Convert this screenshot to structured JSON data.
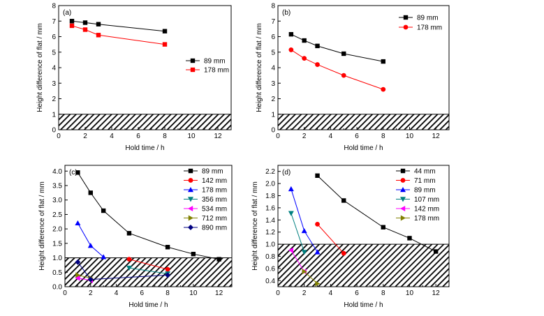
{
  "chart_data": [
    {
      "type": "line",
      "panel_label": "(a)",
      "xlabel": "Hold time / h",
      "ylabel": "Height difference of flat / mm",
      "xlim": [
        0,
        13
      ],
      "ylim": [
        0,
        8
      ],
      "xticks": [
        0,
        2,
        4,
        6,
        8,
        10,
        12
      ],
      "yticks": [
        0,
        1,
        2,
        3,
        4,
        5,
        6,
        7,
        8
      ],
      "hatch_band": [
        0,
        1
      ],
      "legend_position": "right",
      "series": [
        {
          "name": "89 mm",
          "color": "#000000",
          "marker": "square",
          "x": [
            1,
            2,
            3,
            8
          ],
          "y": [
            7.0,
            6.9,
            6.8,
            6.35
          ]
        },
        {
          "name": "178 mm",
          "color": "#ff0000",
          "marker": "square",
          "x": [
            1,
            2,
            3,
            8
          ],
          "y": [
            6.7,
            6.45,
            6.1,
            5.5
          ]
        }
      ]
    },
    {
      "type": "line",
      "panel_label": "(b)",
      "xlabel": "Hold time / h",
      "ylabel": "Height difference of flat / mm",
      "xlim": [
        0,
        13
      ],
      "ylim": [
        0,
        8
      ],
      "xticks": [
        0,
        2,
        4,
        6,
        8,
        10,
        12
      ],
      "yticks": [
        0,
        1,
        2,
        3,
        4,
        5,
        6,
        7,
        8
      ],
      "hatch_band": [
        0,
        1
      ],
      "legend_position": "top-right",
      "series": [
        {
          "name": "89 mm",
          "color": "#000000",
          "marker": "square",
          "x": [
            1,
            2,
            3,
            5,
            8
          ],
          "y": [
            6.15,
            5.75,
            5.4,
            4.9,
            4.4
          ]
        },
        {
          "name": "178 mm",
          "color": "#ff0000",
          "marker": "circle",
          "x": [
            1,
            2,
            3,
            5,
            8
          ],
          "y": [
            5.15,
            4.6,
            4.2,
            3.5,
            2.6
          ]
        }
      ]
    },
    {
      "type": "line",
      "panel_label": "(c)",
      "xlabel": "Hold time / h",
      "ylabel": "Height difference of flat / mm",
      "xlim": [
        0,
        13
      ],
      "ylim": [
        0,
        4.2
      ],
      "xticks": [
        0,
        2,
        4,
        6,
        8,
        10,
        12
      ],
      "yticks": [
        0,
        0.5,
        1.0,
        1.5,
        2.0,
        2.5,
        3.0,
        3.5,
        4.0
      ],
      "hatch_band": [
        0,
        1
      ],
      "legend_position": "top-right",
      "series": [
        {
          "name": "89 mm",
          "color": "#000000",
          "marker": "square",
          "x": [
            1,
            2,
            3,
            5,
            8,
            10,
            12
          ],
          "y": [
            3.95,
            3.25,
            2.63,
            1.85,
            1.37,
            1.13,
            0.95
          ]
        },
        {
          "name": "142 mm",
          "color": "#ff0000",
          "marker": "circle",
          "x": [
            5,
            8
          ],
          "y": [
            0.95,
            0.6
          ]
        },
        {
          "name": "178 mm",
          "color": "#0000ff",
          "marker": "triangle-up",
          "x": [
            1,
            2,
            3
          ],
          "y": [
            2.2,
            1.42,
            1.03
          ]
        },
        {
          "name": "356 mm",
          "color": "#008080",
          "marker": "triangle-down",
          "x": [
            5,
            8
          ],
          "y": [
            0.65,
            0.45
          ]
        },
        {
          "name": "534 mm",
          "color": "#ff00ff",
          "marker": "triangle-left",
          "x": [
            1,
            2
          ],
          "y": [
            0.3,
            0.22
          ]
        },
        {
          "name": "712 mm",
          "color": "#808000",
          "marker": "triangle-right",
          "x": [
            1,
            2
          ],
          "y": [
            0.4,
            0.3
          ]
        },
        {
          "name": "890 mm",
          "color": "#000080",
          "marker": "diamond",
          "x": [
            1,
            2,
            8
          ],
          "y": [
            0.85,
            0.25,
            0.4
          ]
        }
      ]
    },
    {
      "type": "line",
      "panel_label": "(d)",
      "xlabel": "Hold time / h",
      "ylabel": "Height difference of flat / mm",
      "xlim": [
        0,
        13
      ],
      "ylim": [
        0.3,
        2.3
      ],
      "xticks": [
        0,
        2,
        4,
        6,
        8,
        10,
        12
      ],
      "yticks": [
        0.4,
        0.6,
        0.8,
        1.0,
        1.2,
        1.4,
        1.6,
        1.8,
        2.0,
        2.2
      ],
      "hatch_band": [
        0.3,
        1.0
      ],
      "legend_position": "top-right",
      "series": [
        {
          "name": "44 mm",
          "color": "#000000",
          "marker": "square",
          "x": [
            3,
            5,
            8,
            10,
            12
          ],
          "y": [
            2.13,
            1.72,
            1.28,
            1.1,
            0.88
          ]
        },
        {
          "name": "71 mm",
          "color": "#ff0000",
          "marker": "circle",
          "x": [
            3,
            5
          ],
          "y": [
            1.33,
            0.85
          ]
        },
        {
          "name": "89 mm",
          "color": "#0000ff",
          "marker": "triangle-up",
          "x": [
            1,
            2,
            3
          ],
          "y": [
            1.91,
            1.22,
            0.87
          ]
        },
        {
          "name": "107 mm",
          "color": "#008080",
          "marker": "triangle-down",
          "x": [
            1,
            2
          ],
          "y": [
            1.51,
            0.87
          ]
        },
        {
          "name": "142 mm",
          "color": "#ff00ff",
          "marker": "triangle-left",
          "x": [
            1,
            2
          ],
          "y": [
            0.9,
            0.55
          ]
        },
        {
          "name": "178 mm",
          "color": "#808000",
          "marker": "triangle-right",
          "x": [
            2,
            3
          ],
          "y": [
            0.55,
            0.35
          ]
        }
      ]
    }
  ]
}
